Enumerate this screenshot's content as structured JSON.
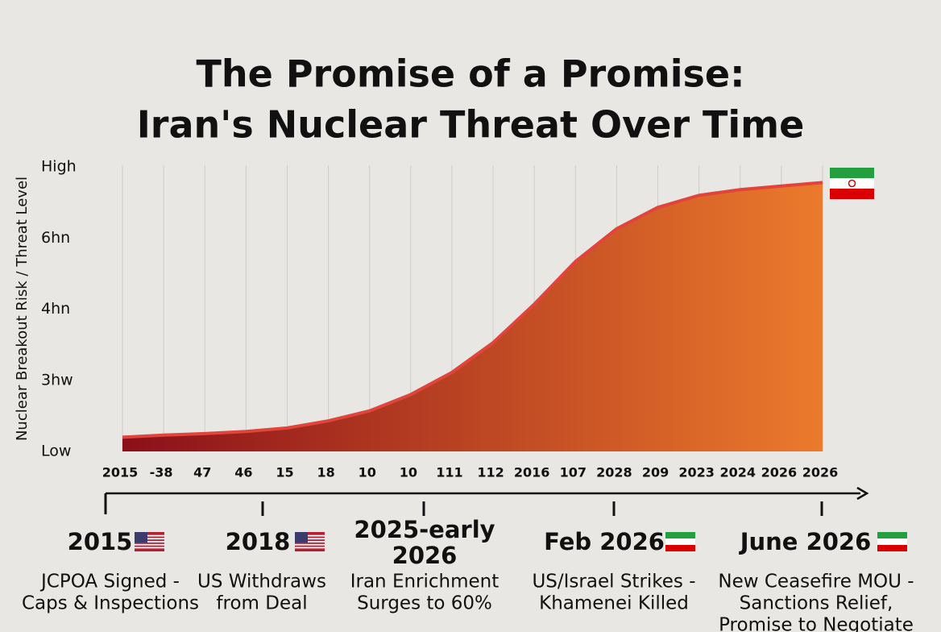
{
  "chart_data": {
    "type": "area",
    "title": [
      "The Promise of a Promise:",
      "Iran's Nuclear Threat Over Time"
    ],
    "y_label": "Nuclear Breakout Risk / Threat Level",
    "categories": [
      "2015",
      "-38",
      "47",
      "46",
      "15",
      "18",
      "10",
      "10",
      "111",
      "112",
      "2016",
      "107",
      "2028",
      "209",
      "2023",
      "2024",
      "2026",
      "2026"
    ],
    "values": [
      0.2,
      0.23,
      0.25,
      0.28,
      0.33,
      0.43,
      0.57,
      0.8,
      1.11,
      1.53,
      2.07,
      2.67,
      3.13,
      3.43,
      3.6,
      3.68,
      3.73,
      3.78
    ],
    "color": "#e0443a",
    "fill_gradient": [
      "#8b0f1a",
      "#ec7a2c"
    ],
    "ylim": [
      0,
      4
    ],
    "yticks": [
      {
        "value": 0,
        "label": "Low"
      },
      {
        "value": 1,
        "label": "3hw"
      },
      {
        "value": 2,
        "label": "4hn"
      },
      {
        "value": 3,
        "label": "6hn"
      },
      {
        "value": 4,
        "label": "High"
      }
    ],
    "grid": true,
    "timeline": [
      {
        "date": [
          "2015"
        ],
        "text": [
          "JCPOA Signed -",
          "Caps & Inspections"
        ]
      },
      {
        "date": [
          "2018"
        ],
        "text": [
          "US Withdraws",
          "from Deal"
        ]
      },
      {
        "date": [
          "2025-early",
          "2026"
        ],
        "text": [
          "Iran Enrichment",
          "Surges to 60%"
        ]
      },
      {
        "date": [
          "Feb 2026"
        ],
        "text": [
          "US/Israel Strikes -",
          "Khamenei Killed"
        ]
      },
      {
        "date": [
          "June 2026"
        ],
        "text": [
          "New Ceasefire MOU -",
          "Sanctions Relief,",
          "Promise to Negotiate"
        ]
      }
    ]
  }
}
